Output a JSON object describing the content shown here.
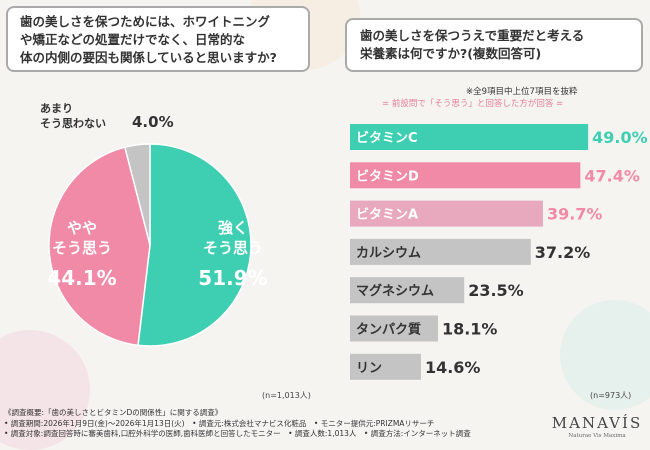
{
  "left_panel": {
    "question": [
      "歯の美しさを保つためには、ホワイトニング",
      "や矯正などの処置だけでなく、日常的な",
      "体の内側の要因も関係していると思いますか?"
    ],
    "sample_size": "(n=1,013人)"
  },
  "right_panel": {
    "question": [
      "歯の美しさを保つうえで重要だと考える",
      "栄養素は何ですか?(複数回答可)"
    ],
    "note_extract": "※全9項目中上位7項目を抜粋",
    "note_subset": "= 前設問で「そう思う」と回答した方が回答 =",
    "sample_size": "(n=973人)"
  },
  "chart_data": [
    {
      "type": "pie",
      "slices": [
        {
          "label": [
            "強く",
            "そう思う"
          ],
          "value": 51.9,
          "display": "51.9%",
          "color": "#3ecfb2"
        },
        {
          "label": [
            "やや",
            "そう思う"
          ],
          "value": 44.1,
          "display": "44.1%",
          "color": "#f08aa6"
        },
        {
          "label": [
            "あまり",
            "そう思わない"
          ],
          "value": 4.0,
          "display": "4.0%",
          "color": "#c4c4c4"
        }
      ]
    },
    {
      "type": "bar",
      "orientation": "horizontal",
      "categories": [
        "ビタミンC",
        "ビタミンD",
        "ビタミンA",
        "カルシウム",
        "マグネシウム",
        "タンパク質",
        "リン"
      ],
      "values": [
        49.0,
        47.4,
        39.7,
        37.2,
        23.5,
        18.1,
        14.6
      ],
      "displays": [
        "49.0%",
        "47.4%",
        "39.7%",
        "37.2%",
        "23.5%",
        "18.1%",
        "14.6%"
      ],
      "colors": [
        "#3ecfb2",
        "#f08aa6",
        "#e8a9bf",
        "#c4c4c4",
        "#c4c4c4",
        "#c4c4c4",
        "#c4c4c4"
      ],
      "label_colors": [
        "#ffffff",
        "#ffffff",
        "#ffffff",
        "#333333",
        "#333333",
        "#333333",
        "#333333"
      ],
      "xlim": [
        0,
        50
      ]
    }
  ],
  "footer": {
    "lines": [
      "《調査概要:「歯の美しさとビタミンDの関係性」に関する調査》",
      "• 調査期間:2026年1月9日(金)〜2026年1月13日(火)　• 調査元:株式会社マナビス化粧品　• モニター提供元:PRIZMAリサーチ",
      "• 調査対象:調査回答時に審美歯科,口腔外科学の医師,歯科医師と回答したモニター　• 調査人数:1,013人　• 調査方法:インターネット調査"
    ]
  },
  "logo": {
    "main": "MANAVÍS",
    "sub": "Naturae Vis Maxima"
  }
}
